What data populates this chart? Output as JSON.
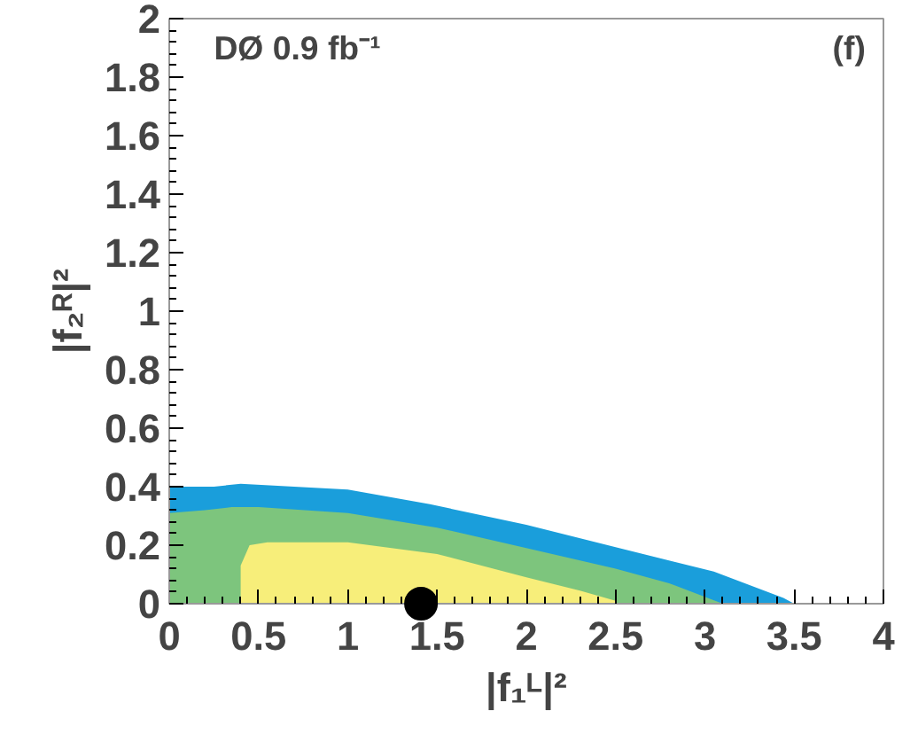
{
  "chart_data": {
    "type": "area",
    "xlabel": "|f₁ᴸ|²",
    "ylabel": "|f₂ᴿ|²",
    "annotations": [
      "DØ 0.9 fb⁻¹",
      "(f)"
    ],
    "xlim": [
      0,
      4
    ],
    "ylim": [
      0,
      2
    ],
    "xticks": [
      0,
      0.5,
      1,
      1.5,
      2,
      2.5,
      3,
      3.5,
      4
    ],
    "yticks": [
      0,
      0.2,
      0.4,
      0.6,
      0.8,
      1,
      1.2,
      1.4,
      1.6,
      1.8,
      2
    ],
    "grid": false,
    "series": [
      {
        "color": "#1a9edb",
        "x": [
          0,
          0.15,
          0.25,
          0.4,
          1.0,
          1.46,
          2.0,
          2.52,
          3.05,
          3.44,
          3.5
        ],
        "values": [
          0.4,
          0.4,
          0.4,
          0.41,
          0.39,
          0.34,
          0.27,
          0.19,
          0.11,
          0.02,
          0
        ]
      },
      {
        "color": "#7dc57d",
        "x": [
          0,
          0.2,
          0.35,
          0.5,
          1.0,
          1.5,
          2.0,
          2.5,
          2.8,
          3.1
        ],
        "values": [
          0.31,
          0.32,
          0.33,
          0.33,
          0.31,
          0.26,
          0.19,
          0.12,
          0.07,
          0
        ]
      },
      {
        "color": "#f7ee7a",
        "x": [
          0.4,
          0.45,
          0.55,
          0.7,
          1.0,
          1.5,
          2.0,
          2.3,
          2.5
        ],
        "values": [
          0.13,
          0.2,
          0.21,
          0.21,
          0.21,
          0.17,
          0.09,
          0.045,
          0.01
        ]
      },
      {
        "type": "scatter",
        "color": "#000000",
        "marker": "circle",
        "x": [
          1.41
        ],
        "values": [
          0
        ]
      }
    ]
  }
}
